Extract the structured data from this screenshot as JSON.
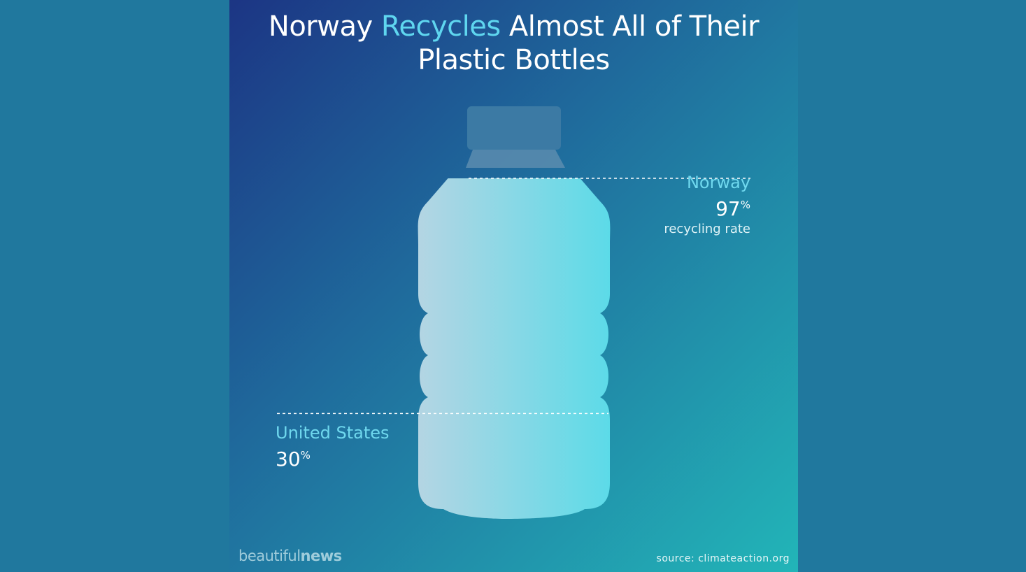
{
  "title": {
    "part1": "Norway ",
    "highlight": "Recycles",
    "part2": " Almost All of Their",
    "line2": "Plastic Bottles"
  },
  "chart_data": {
    "type": "bar",
    "categories": [
      "Norway",
      "United States"
    ],
    "values": [
      97,
      30
    ],
    "unit": "%",
    "ylim": [
      0,
      100
    ],
    "annotations": [
      {
        "label": "Norway",
        "value": "97",
        "suffix": "%",
        "note": "recycling rate"
      },
      {
        "label": "United States",
        "value": "30",
        "suffix": "%"
      }
    ],
    "colors": {
      "fill_left": "#b7d5e3",
      "fill_right": "#57dbe8",
      "cap": "#3c7aa4"
    }
  },
  "footer": {
    "brand_light": "beautiful",
    "brand_bold": "news",
    "source": "source: climateaction.org"
  }
}
